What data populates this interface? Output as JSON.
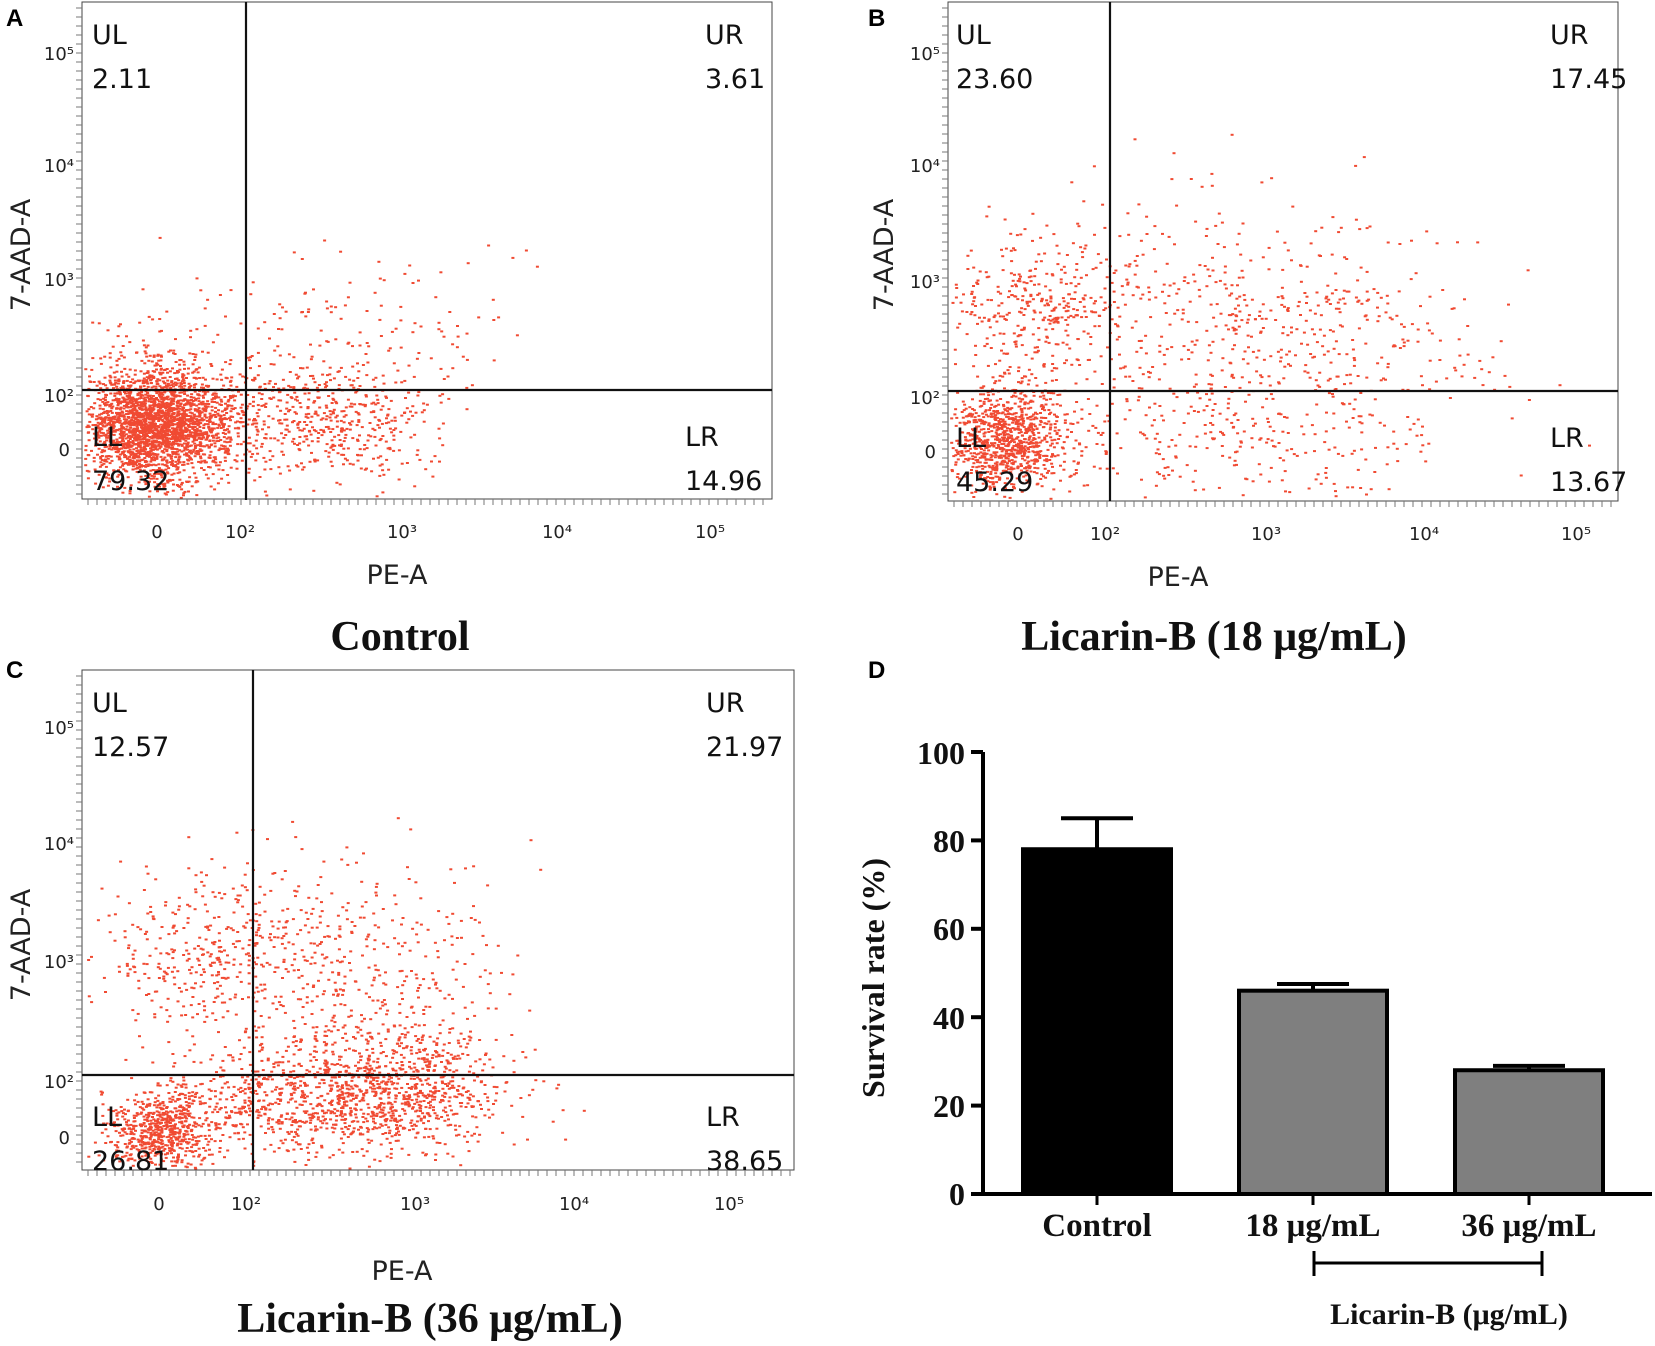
{
  "colors": {
    "dots": "#f04a32",
    "ink": "#111111",
    "control_bar": "#000000",
    "treated_bar": "#7f7f7f"
  },
  "chart_data": [
    {
      "type": "scatter",
      "panel": "A",
      "caption": "Control",
      "xlabel": "PE-A",
      "ylabel": "7-AAD-A",
      "xticks": [
        "0",
        "10²",
        "10³",
        "10⁴",
        "10⁵"
      ],
      "yticks": [
        "0",
        "10²",
        "10³",
        "10⁴",
        "10⁵"
      ],
      "gate_x": "10²",
      "gate_y": "10²",
      "quadrants": [
        {
          "name": "UL",
          "value": "2.11"
        },
        {
          "name": "UR",
          "value": "3.61"
        },
        {
          "name": "LL",
          "value": "79.32"
        },
        {
          "name": "LR",
          "value": "14.96"
        }
      ]
    },
    {
      "type": "scatter",
      "panel": "B",
      "caption": "Licarin-B (18 μg/mL)",
      "xlabel": "PE-A",
      "ylabel": "7-AAD-A",
      "xticks": [
        "0",
        "10²",
        "10³",
        "10⁴",
        "10⁵"
      ],
      "yticks": [
        "0",
        "10²",
        "10³",
        "10⁴",
        "10⁵"
      ],
      "gate_x": "10²",
      "gate_y": "10²",
      "quadrants": [
        {
          "name": "UL",
          "value": "23.60"
        },
        {
          "name": "UR",
          "value": "17.45"
        },
        {
          "name": "LL",
          "value": "45.29"
        },
        {
          "name": "LR",
          "value": "13.67"
        }
      ]
    },
    {
      "type": "scatter",
      "panel": "C",
      "caption": "Licarin-B (36 μg/mL)",
      "xlabel": "PE-A",
      "ylabel": "7-AAD-A",
      "xticks": [
        "0",
        "10²",
        "10³",
        "10⁴",
        "10⁵"
      ],
      "yticks": [
        "0",
        "10²",
        "10³",
        "10⁴",
        "10⁵"
      ],
      "gate_x": "10²",
      "gate_y": "10²",
      "quadrants": [
        {
          "name": "UL",
          "value": "12.57"
        },
        {
          "name": "UR",
          "value": "21.97"
        },
        {
          "name": "LL",
          "value": "26.81"
        },
        {
          "name": "LR",
          "value": "38.65"
        }
      ]
    },
    {
      "type": "bar",
      "panel": "D",
      "categories": [
        "Control",
        "18 μg/mL",
        "36 μg/mL"
      ],
      "values": [
        78,
        46,
        28
      ],
      "errors": [
        7,
        1.5,
        1
      ],
      "ylabel": "Survival rate (%)",
      "ylim": [
        0,
        100
      ],
      "yticks": [
        "0",
        "20",
        "40",
        "60",
        "80",
        "100"
      ],
      "group_label": "Licarin-B (μg/mL)"
    }
  ]
}
